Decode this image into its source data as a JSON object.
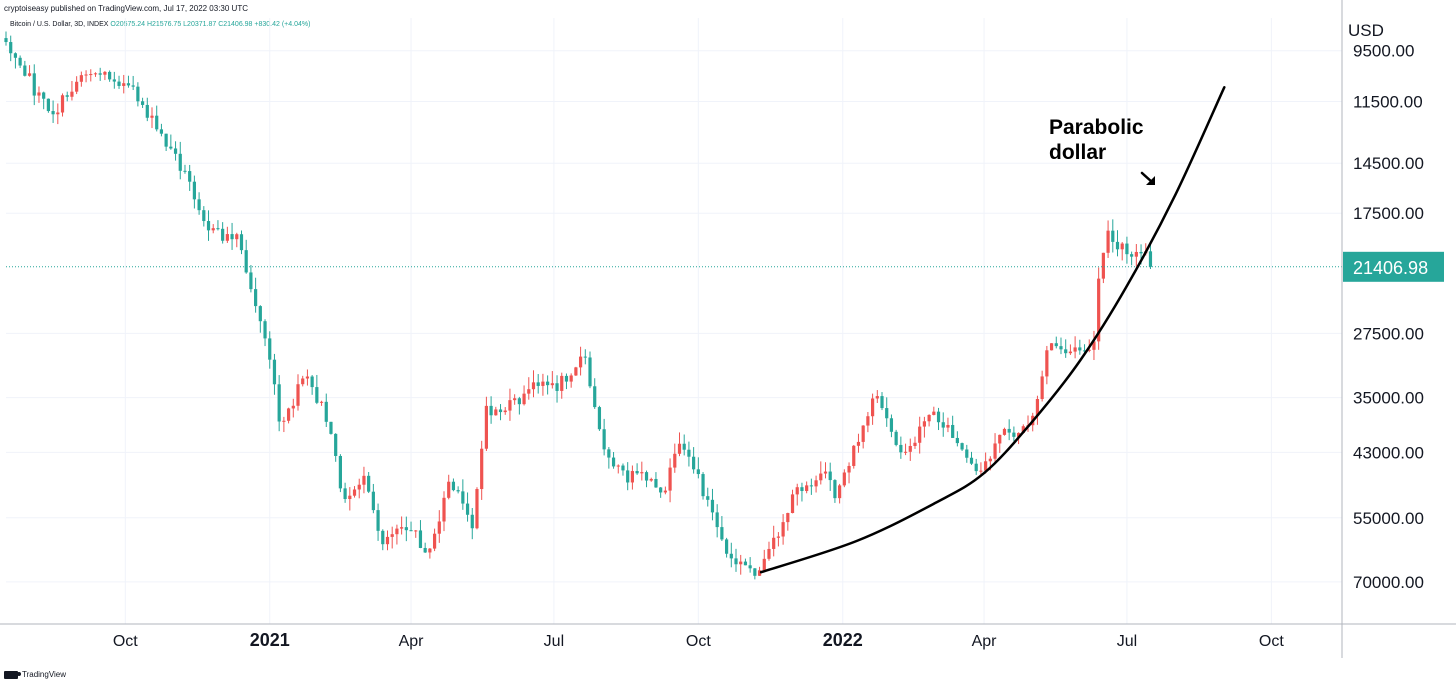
{
  "header": {
    "publish_line": "cryptoiseasy published on TradingView.com, Jul 17, 2022 03:30 UTC",
    "symbol": "Bitcoin / U.S. Dollar, 3D, INDEX",
    "ohlc": "O20575.24 H21576.75 L20371.87 C21406.98 +830.42 (+4.04%)"
  },
  "footer": {
    "brand": "TradingView"
  },
  "annotation": {
    "line1": "Parabolic",
    "line2": "dollar",
    "arrow": "arrow-down-right-icon"
  },
  "colors": {
    "up": "#26a69a",
    "down": "#ef5350",
    "curve": "#000000",
    "grid": "#f0f3fa",
    "current": "#26a69a"
  },
  "chart_data": {
    "type": "candlestick",
    "title": "",
    "currency": "USD",
    "y_scale": "inverted-log",
    "ylim": [
      8400,
      82000
    ],
    "y_ticks": [
      {
        "value": 9500,
        "label": "9500.00"
      },
      {
        "value": 11500,
        "label": "11500.00"
      },
      {
        "value": 14500,
        "label": "14500.00"
      },
      {
        "value": 17500,
        "label": "17500.00"
      },
      {
        "value": 27500,
        "label": "27500.00"
      },
      {
        "value": 35000,
        "label": "35000.00"
      },
      {
        "value": 43000,
        "label": "43000.00"
      },
      {
        "value": 55000,
        "label": "55000.00"
      },
      {
        "value": 70000,
        "label": "70000.00"
      }
    ],
    "current_price": {
      "value": 21406.98,
      "label": "21406.98"
    },
    "x_start": "2020-07-17",
    "x_end": "2022-11-15",
    "x_ticks": [
      {
        "date": "2020-10-01",
        "label": "Oct",
        "bold": false
      },
      {
        "date": "2021-01-01",
        "label": "2021",
        "bold": true
      },
      {
        "date": "2021-04-01",
        "label": "Apr",
        "bold": false
      },
      {
        "date": "2021-07-01",
        "label": "Jul",
        "bold": false
      },
      {
        "date": "2021-10-01",
        "label": "Oct",
        "bold": false
      },
      {
        "date": "2022-01-01",
        "label": "2022",
        "bold": true
      },
      {
        "date": "2022-04-01",
        "label": "Apr",
        "bold": false
      },
      {
        "date": "2022-07-01",
        "label": "Jul",
        "bold": false
      },
      {
        "date": "2022-10-01",
        "label": "Oct",
        "bold": false
      }
    ],
    "price_path": [
      [
        "2020-07-17",
        9150
      ],
      [
        "2020-07-26",
        9800
      ],
      [
        "2020-08-06",
        11300
      ],
      [
        "2020-08-17",
        12000
      ],
      [
        "2020-09-05",
        10200
      ],
      [
        "2020-09-25",
        10500
      ],
      [
        "2020-10-10",
        11400
      ],
      [
        "2020-10-21",
        12800
      ],
      [
        "2020-11-01",
        14000
      ],
      [
        "2020-11-12",
        15800
      ],
      [
        "2020-11-24",
        18700
      ],
      [
        "2020-12-01",
        19100
      ],
      [
        "2020-12-13",
        19200
      ],
      [
        "2020-12-19",
        23000
      ],
      [
        "2020-12-31",
        29000
      ],
      [
        "2021-01-08",
        40000
      ],
      [
        "2021-01-23",
        32200
      ],
      [
        "2021-02-05",
        37000
      ],
      [
        "2021-02-18",
        52000
      ],
      [
        "2021-03-01",
        47000
      ],
      [
        "2021-03-13",
        60000
      ],
      [
        "2021-03-27",
        55500
      ],
      [
        "2021-04-13",
        63000
      ],
      [
        "2021-04-25",
        48000
      ],
      [
        "2021-05-10",
        56000
      ],
      [
        "2021-05-19",
        37000
      ],
      [
        "2021-06-01",
        36500
      ],
      [
        "2021-06-12",
        35000
      ],
      [
        "2021-06-22",
        32500
      ],
      [
        "2021-07-01",
        34000
      ],
      [
        "2021-07-20",
        29800
      ],
      [
        "2021-07-31",
        41000
      ],
      [
        "2021-08-14",
        47000
      ],
      [
        "2021-08-31",
        47500
      ],
      [
        "2021-09-06",
        51800
      ],
      [
        "2021-09-21",
        41000
      ],
      [
        "2021-10-01",
        47500
      ],
      [
        "2021-10-14",
        57500
      ],
      [
        "2021-10-20",
        64500
      ],
      [
        "2021-11-10",
        67500
      ],
      [
        "2021-11-22",
        57000
      ],
      [
        "2021-12-04",
        49000
      ],
      [
        "2021-12-20",
        46800
      ],
      [
        "2021-12-27",
        50500
      ],
      [
        "2022-01-10",
        41500
      ],
      [
        "2022-01-22",
        35000
      ],
      [
        "2022-02-10",
        44000
      ],
      [
        "2022-02-24",
        37000
      ],
      [
        "2022-03-07",
        38500
      ],
      [
        "2022-03-28",
        47500
      ],
      [
        "2022-04-11",
        40000
      ],
      [
        "2022-04-25",
        40000
      ],
      [
        "2022-05-05",
        36000
      ],
      [
        "2022-05-12",
        28500
      ],
      [
        "2022-05-24",
        29500
      ],
      [
        "2022-06-10",
        29000
      ],
      [
        "2022-06-13",
        22500
      ],
      [
        "2022-06-18",
        19000
      ],
      [
        "2022-06-29",
        20000
      ],
      [
        "2022-07-05",
        20300
      ],
      [
        "2022-07-14",
        20600
      ],
      [
        "2022-07-17",
        21406.98
      ]
    ],
    "curve": {
      "label": "Parabolic dollar",
      "start": [
        "2021-11-10",
        67500
      ],
      "points": [
        [
          "2022-01-10",
          60000
        ],
        [
          "2022-03-01",
          52000
        ],
        [
          "2022-04-01",
          46500
        ],
        [
          "2022-05-01",
          38500
        ],
        [
          "2022-06-01",
          30500
        ],
        [
          "2022-07-01",
          23000
        ],
        [
          "2022-08-01",
          16300
        ],
        [
          "2022-09-01",
          10900
        ]
      ]
    }
  }
}
